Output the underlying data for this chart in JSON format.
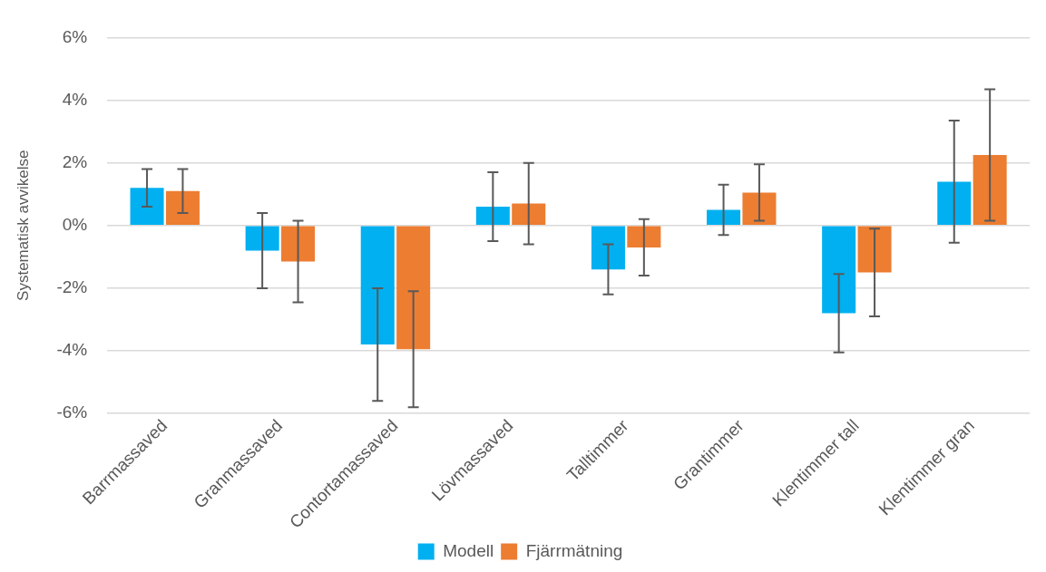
{
  "chart_data": {
    "type": "bar",
    "ylabel": "Systematisk avvikelse",
    "categories": [
      "Barrmassaved",
      "Granmassaved",
      "Contortamassaved",
      "Lövmassaved",
      "Talltimmer",
      "Grantimmer",
      "Klentimmer tall",
      "Klentimmer gran"
    ],
    "series": [
      {
        "name": "Modell",
        "color": "#00b0f0",
        "values": [
          1.2,
          -0.8,
          -3.8,
          0.6,
          -1.4,
          0.5,
          -2.8,
          1.4
        ],
        "errors": [
          0.6,
          1.2,
          1.8,
          1.1,
          0.8,
          0.8,
          1.25,
          1.95
        ]
      },
      {
        "name": "Fjärrmätning",
        "color": "#ed7d31",
        "values": [
          1.1,
          -1.15,
          -3.95,
          0.7,
          -0.7,
          1.05,
          -1.5,
          2.25
        ],
        "errors": [
          0.7,
          1.3,
          1.85,
          1.3,
          0.9,
          0.9,
          1.4,
          2.1
        ]
      }
    ],
    "ylim": [
      -6,
      6
    ],
    "yticks": [
      {
        "value": -6,
        "label": "-6%"
      },
      {
        "value": -4,
        "label": "-4%"
      },
      {
        "value": -2,
        "label": "-2%"
      },
      {
        "value": 0,
        "label": "0%"
      },
      {
        "value": 2,
        "label": "2%"
      },
      {
        "value": 4,
        "label": "4%"
      },
      {
        "value": 6,
        "label": "6%"
      }
    ],
    "grid": "y",
    "legend": "bottom"
  }
}
